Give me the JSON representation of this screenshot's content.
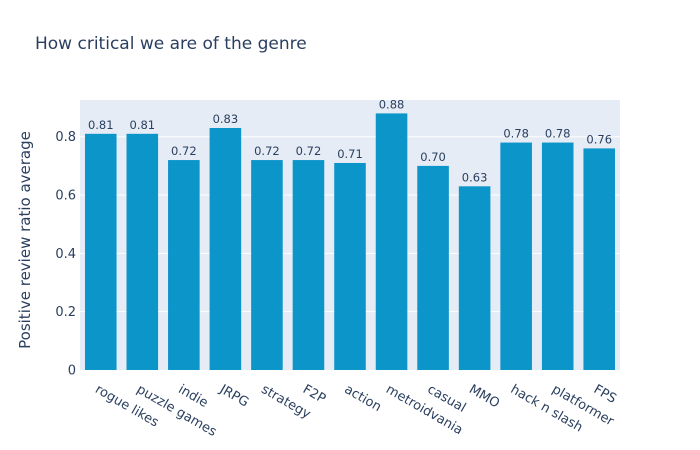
{
  "chart_data": {
    "type": "bar",
    "title": "How critical we are of the genre",
    "xlabel": "",
    "ylabel": "Positive review ratio average",
    "categories": [
      "rogue likes",
      "puzzle games",
      "indie",
      "JRPG",
      "strategy",
      "F2P",
      "action",
      "metroidvania",
      "casual",
      "MMO",
      "hack n slash",
      "platformer",
      "FPS"
    ],
    "values": [
      0.81,
      0.81,
      0.72,
      0.83,
      0.72,
      0.72,
      0.71,
      0.88,
      0.7,
      0.63,
      0.78,
      0.78,
      0.76
    ],
    "value_labels": [
      "0.81",
      "0.81",
      "0.72",
      "0.83",
      "0.72",
      "0.72",
      "0.71",
      "0.88",
      "0.70",
      "0.63",
      "0.78",
      "0.78",
      "0.76"
    ],
    "yticks": [
      0,
      0.2,
      0.4,
      0.6,
      0.8
    ],
    "ytick_labels": [
      "0",
      "0.2",
      "0.4",
      "0.6",
      "0.8"
    ],
    "ylim": [
      0,
      0.926
    ],
    "grid": true,
    "legend": "none",
    "colors": {
      "bar": "#0b95c9",
      "plot_bg": "#e5ecf6",
      "grid": "#ffffff",
      "text": "#2a3f5f"
    }
  }
}
